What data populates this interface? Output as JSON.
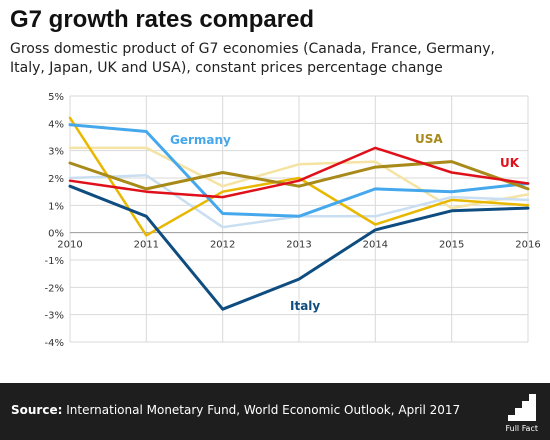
{
  "title": "G7 growth rates compared",
  "subtitle": "Gross domestic product of G7 economies (Canada, France, Germany, Italy, Japan, UK and USA), constant prices percentage change",
  "source": {
    "prefix": "Source:",
    "text": " International Monetary Fund, World Economic Outlook, April 2017"
  },
  "logo": {
    "text": "Full Fact"
  },
  "colors": {
    "background": "#ffffff",
    "footer": "#1e1e1e",
    "grid": "#d9d9d9"
  },
  "chart_data": {
    "type": "line",
    "title": "",
    "xlabel": "",
    "ylabel": "",
    "x": [
      2010,
      2011,
      2012,
      2013,
      2014,
      2015,
      2016
    ],
    "x_tick_labels": [
      "2010",
      "2011",
      "2012",
      "2013",
      "2014",
      "2015",
      "2016"
    ],
    "ylim": [
      -4,
      5
    ],
    "y_ticks": [
      5,
      4,
      3,
      2,
      1,
      0,
      -1,
      -2,
      -3,
      -4
    ],
    "y_tick_labels": [
      "5%",
      "4%",
      "3%",
      "2%",
      "1%",
      "0%",
      "-1%",
      "-2%",
      "-3%",
      "-4%"
    ],
    "grid": true,
    "series": [
      {
        "key": "canada",
        "name": "",
        "color": "#f5e3a3",
        "width": 2.5,
        "values": [
          3.1,
          3.1,
          1.7,
          2.5,
          2.6,
          0.9,
          1.4
        ]
      },
      {
        "key": "france",
        "name": "",
        "color": "#c9def0",
        "width": 2.5,
        "values": [
          2.0,
          2.1,
          0.2,
          0.6,
          0.6,
          1.3,
          1.2
        ]
      },
      {
        "key": "japan",
        "name": "",
        "color": "#e8b800",
        "width": 2.5,
        "values": [
          4.2,
          -0.1,
          1.5,
          2.0,
          0.3,
          1.2,
          1.0
        ]
      },
      {
        "key": "germany",
        "name": "Germany",
        "color": "#45a8ec",
        "width": 3,
        "values": [
          3.95,
          3.7,
          0.7,
          0.6,
          1.6,
          1.5,
          1.8
        ]
      },
      {
        "key": "usa",
        "name": "USA",
        "color": "#a88a1a",
        "width": 3,
        "values": [
          2.55,
          1.6,
          2.2,
          1.7,
          2.4,
          2.6,
          1.6
        ]
      },
      {
        "key": "uk",
        "name": "UK",
        "color": "#e0101a",
        "width": 2.5,
        "values": [
          1.9,
          1.5,
          1.3,
          1.9,
          3.1,
          2.2,
          1.8
        ]
      },
      {
        "key": "italy",
        "name": "Italy",
        "color": "#0f4d80",
        "width": 3,
        "values": [
          1.7,
          0.6,
          -2.8,
          -1.7,
          0.1,
          0.8,
          0.9
        ]
      }
    ]
  }
}
